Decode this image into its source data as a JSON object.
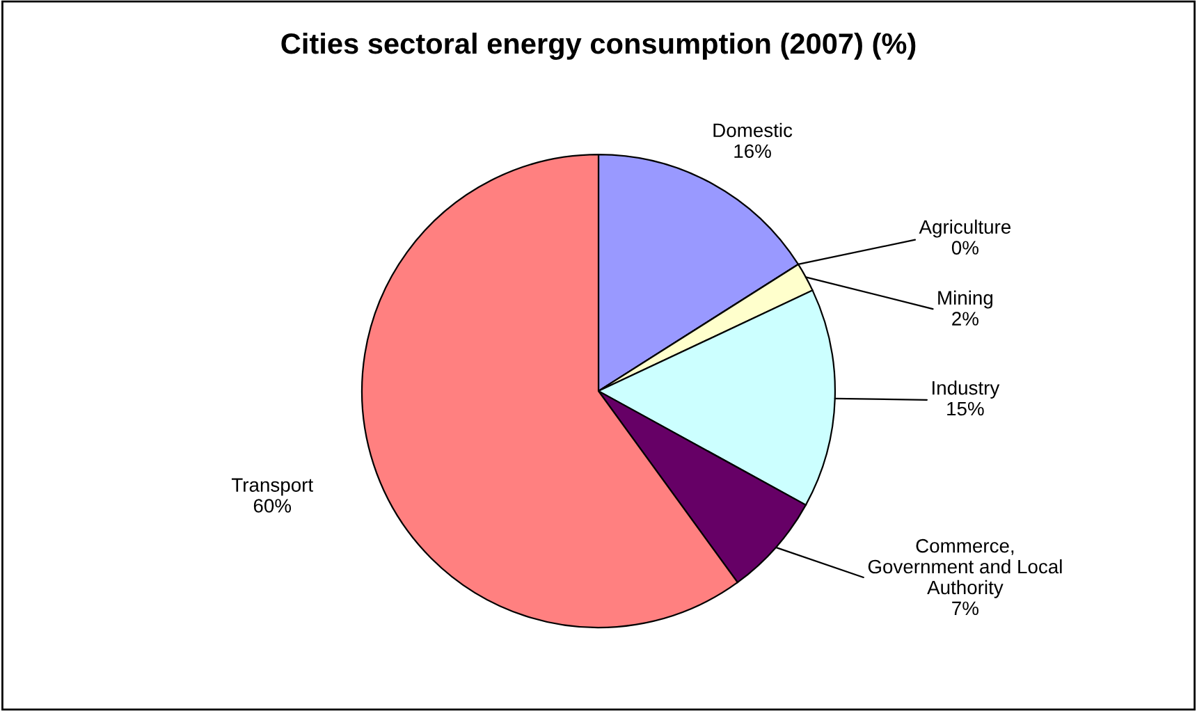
{
  "chart_data": {
    "type": "pie",
    "title": "Cities sectoral energy consumption (2007) (%)",
    "categories": [
      "Domestic",
      "Agriculture",
      "Mining",
      "Industry",
      "Commerce, Government and Local Authority",
      "Transport"
    ],
    "values": [
      16,
      0,
      2,
      15,
      7,
      60
    ],
    "colors": [
      "#9999ff",
      "#993366",
      "#ffffcc",
      "#ccffff",
      "#660066",
      "#ff8080"
    ],
    "value_labels": [
      "16%",
      "0%",
      "2%",
      "15%",
      "7%",
      "60%"
    ]
  }
}
